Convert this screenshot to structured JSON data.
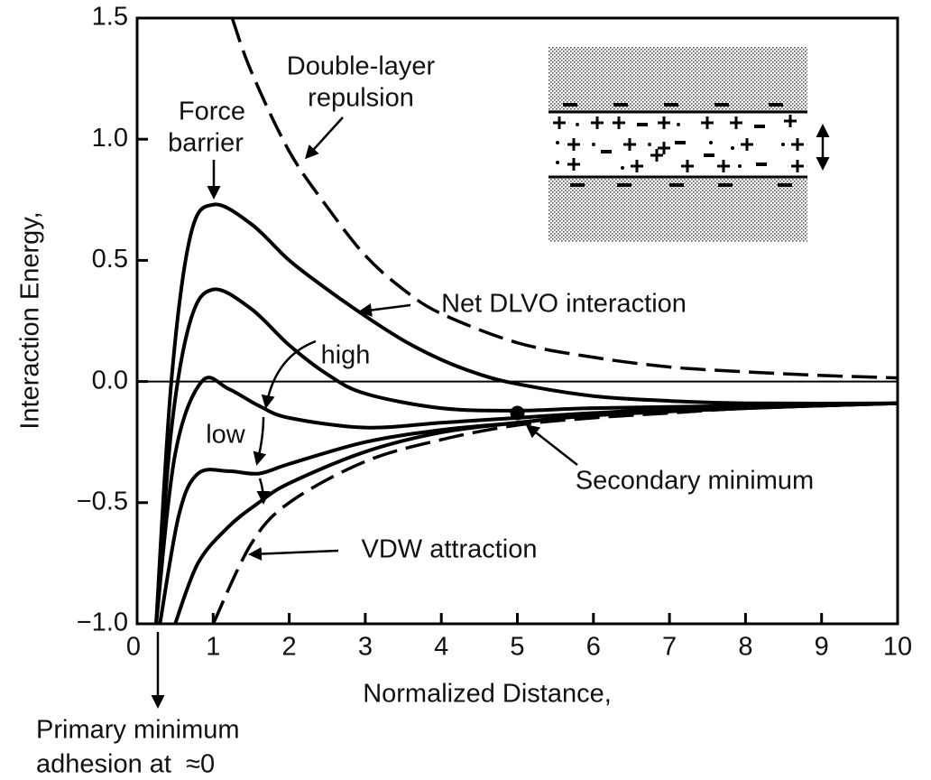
{
  "chart_data": {
    "type": "line",
    "xlabel": "Normalized Distance,",
    "ylabel": "Interaction Energy,",
    "xlim": [
      0,
      10
    ],
    "ylim": [
      -1.0,
      1.5
    ],
    "xticks": [
      0,
      1,
      2,
      3,
      4,
      5,
      6,
      7,
      8,
      9,
      10
    ],
    "yticks": [
      {
        "value": -1.0,
        "label": "−1.0"
      },
      {
        "value": -0.5,
        "label": "−0.5"
      },
      {
        "value": 0,
        "label": "0.0"
      },
      0.5,
      {
        "value": 1.0,
        "label": "1.0"
      },
      1.5
    ],
    "zero_line": true,
    "series": [
      {
        "color": "#000",
        "style": "dashed",
        "x": [
          1.25,
          1.5,
          2,
          2.5,
          3,
          3.5,
          4,
          5,
          6,
          7,
          8,
          9,
          10
        ],
        "values": [
          1.5,
          1.28,
          0.95,
          0.72,
          0.52,
          0.38,
          0.28,
          0.16,
          0.1,
          0.06,
          0.04,
          0.025,
          0.015
        ]
      },
      {
        "color": "#000",
        "style": "dashed",
        "x": [
          1,
          1.5,
          2,
          3,
          4,
          5,
          6,
          7,
          8,
          9,
          10
        ],
        "values": [
          -1.0,
          -0.67,
          -0.5,
          -0.33,
          -0.24,
          -0.18,
          -0.15,
          -0.13,
          -0.11,
          -0.1,
          -0.09
        ]
      },
      {
        "color": "#000",
        "style": "solid",
        "x": [
          0.25,
          0.45,
          0.7,
          1,
          1.5,
          2,
          2.5,
          3,
          3.5,
          4,
          4.5,
          5,
          6,
          7,
          8,
          10
        ],
        "values": [
          -1.0,
          0,
          0.6,
          0.73,
          0.65,
          0.5,
          0.38,
          0.27,
          0.17,
          0.09,
          0.03,
          -0.01,
          -0.06,
          -0.08,
          -0.09,
          -0.09
        ]
      },
      {
        "color": "#000",
        "style": "solid",
        "x": [
          0.25,
          0.45,
          0.7,
          1,
          1.5,
          2,
          2.5,
          3,
          4,
          5,
          6,
          8,
          10
        ],
        "values": [
          -1.0,
          -0.2,
          0.25,
          0.38,
          0.3,
          0.15,
          0.03,
          -0.05,
          -0.11,
          -0.12,
          -0.11,
          -0.1,
          -0.09
        ]
      },
      {
        "color": "#000",
        "style": "solid",
        "x": [
          0.25,
          0.5,
          0.85,
          1.2,
          1.6,
          2,
          3,
          4,
          5,
          6,
          8,
          10
        ],
        "values": [
          -1.0,
          -0.3,
          0,
          -0.03,
          -0.1,
          -0.15,
          -0.19,
          -0.17,
          -0.15,
          -0.13,
          -0.1,
          -0.09
        ]
      },
      {
        "color": "#000",
        "style": "solid",
        "x": [
          0.3,
          0.55,
          0.8,
          1.2,
          1.6,
          2,
          3,
          4,
          5,
          6,
          8,
          10
        ],
        "values": [
          -1.0,
          -0.55,
          -0.38,
          -0.37,
          -0.38,
          -0.34,
          -0.25,
          -0.2,
          -0.17,
          -0.14,
          -0.11,
          -0.09
        ]
      },
      {
        "color": "#000",
        "style": "solid",
        "x": [
          0.5,
          0.8,
          1.2,
          1.6,
          2,
          3,
          4,
          5,
          6,
          8,
          10
        ],
        "values": [
          -1.0,
          -0.75,
          -0.6,
          -0.5,
          -0.42,
          -0.29,
          -0.21,
          -0.17,
          -0.14,
          -0.11,
          -0.09
        ]
      }
    ],
    "marker": {
      "x": 5,
      "y": -0.13
    },
    "annotations": [
      "Double-layer",
      "repulsion",
      "Force",
      "barrier",
      "Net DLVO interaction",
      "high",
      "low",
      "Secondary minimum",
      "VDW attraction",
      "Primary minimum",
      "adhesion at  ≈0"
    ]
  }
}
